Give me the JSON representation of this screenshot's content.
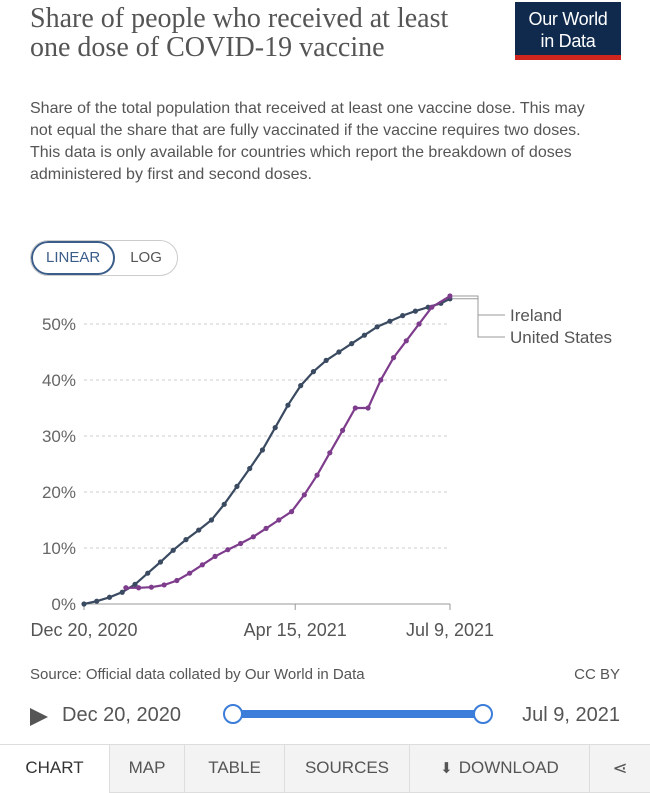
{
  "header": {
    "title": "Share of people who received at least one dose of COVID-19 vaccine",
    "subtitle": "Share of the total population that received at least one vaccine dose. This may not equal the share that are fully vaccinated if the vaccine requires two doses. This data is only available for countries which report the breakdown of doses administered by first and second doses.",
    "logo_line1": "Our World",
    "logo_line2": "in Data"
  },
  "scale": {
    "linear_label": "LINEAR",
    "log_label": "LOG",
    "selected": "LINEAR"
  },
  "colors": {
    "united_states": "#3a4a61",
    "ireland": "#7e3c8c",
    "grid": "#cccccc",
    "accent": "#3b7dd8",
    "logo_bg": "#0f2a4d",
    "logo_bar": "#ce261e"
  },
  "chart_data": {
    "type": "line",
    "title": "Share of people who received at least one dose of COVID-19 vaccine",
    "x_axis": {
      "type": "date",
      "range": [
        "2020-12-20",
        "2021-07-09"
      ],
      "tick_labels": [
        "Dec 20, 2020",
        "Apr 15, 2021",
        "Jul 9, 2021"
      ],
      "tick_dates": [
        "2020-12-20",
        "2021-04-15",
        "2021-07-09"
      ]
    },
    "y_axis": {
      "range": [
        0,
        55
      ],
      "tick_values": [
        0,
        10,
        20,
        30,
        40,
        50
      ],
      "tick_labels": [
        "0%",
        "10%",
        "20%",
        "30%",
        "40%",
        "50%"
      ]
    },
    "grid": "horizontal dashed",
    "legend": "right, labels at line ends",
    "series": [
      {
        "name": "United States",
        "color": "#3a4a61",
        "points": [
          [
            "2020-12-20",
            0.0
          ],
          [
            "2020-12-27",
            0.5
          ],
          [
            "2021-01-03",
            1.2
          ],
          [
            "2021-01-10",
            2.1
          ],
          [
            "2021-01-17",
            3.5
          ],
          [
            "2021-01-24",
            5.5
          ],
          [
            "2021-01-31",
            7.5
          ],
          [
            "2021-02-07",
            9.6
          ],
          [
            "2021-02-14",
            11.5
          ],
          [
            "2021-02-21",
            13.2
          ],
          [
            "2021-02-28",
            15.0
          ],
          [
            "2021-03-07",
            17.8
          ],
          [
            "2021-03-14",
            21.0
          ],
          [
            "2021-03-21",
            24.2
          ],
          [
            "2021-03-28",
            27.5
          ],
          [
            "2021-04-04",
            31.5
          ],
          [
            "2021-04-11",
            35.5
          ],
          [
            "2021-04-18",
            39.0
          ],
          [
            "2021-04-25",
            41.5
          ],
          [
            "2021-05-02",
            43.5
          ],
          [
            "2021-05-09",
            45.0
          ],
          [
            "2021-05-16",
            46.5
          ],
          [
            "2021-05-23",
            48.0
          ],
          [
            "2021-05-30",
            49.5
          ],
          [
            "2021-06-06",
            50.5
          ],
          [
            "2021-06-13",
            51.5
          ],
          [
            "2021-06-20",
            52.3
          ],
          [
            "2021-06-27",
            53.0
          ],
          [
            "2021-07-04",
            53.7
          ],
          [
            "2021-07-09",
            54.5
          ]
        ]
      },
      {
        "name": "Ireland",
        "color": "#7e3c8c",
        "points": [
          [
            "2021-01-12",
            2.9
          ],
          [
            "2021-01-19",
            2.9
          ],
          [
            "2021-01-26",
            3.0
          ],
          [
            "2021-02-02",
            3.4
          ],
          [
            "2021-02-09",
            4.2
          ],
          [
            "2021-02-16",
            5.5
          ],
          [
            "2021-02-23",
            7.0
          ],
          [
            "2021-03-02",
            8.5
          ],
          [
            "2021-03-09",
            9.7
          ],
          [
            "2021-03-16",
            10.8
          ],
          [
            "2021-03-23",
            12.0
          ],
          [
            "2021-03-30",
            13.5
          ],
          [
            "2021-04-06",
            15.0
          ],
          [
            "2021-04-13",
            16.5
          ],
          [
            "2021-04-20",
            19.5
          ],
          [
            "2021-04-27",
            23.0
          ],
          [
            "2021-05-04",
            27.0
          ],
          [
            "2021-05-11",
            31.0
          ],
          [
            "2021-05-18",
            35.0
          ],
          [
            "2021-05-25",
            35.0
          ],
          [
            "2021-06-01",
            40.0
          ],
          [
            "2021-06-08",
            44.0
          ],
          [
            "2021-06-15",
            47.0
          ],
          [
            "2021-06-22",
            50.0
          ],
          [
            "2021-06-29",
            53.0
          ],
          [
            "2021-07-09",
            55.0
          ]
        ]
      }
    ]
  },
  "footer": {
    "source": "Source: Official data collated by Our World in Data",
    "license": "CC BY"
  },
  "timeline": {
    "start_label": "Dec 20, 2020",
    "end_label": "Jul 9, 2021"
  },
  "tabs": {
    "chart": "CHART",
    "map": "MAP",
    "table": "TABLE",
    "sources": "SOURCES",
    "download": "DOWNLOAD",
    "active": "CHART"
  }
}
